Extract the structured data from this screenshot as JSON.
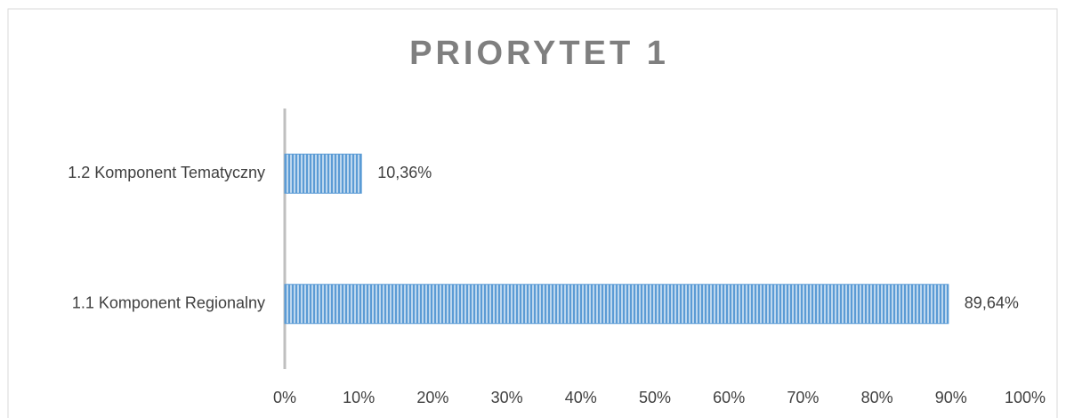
{
  "chart_data": {
    "type": "bar",
    "orientation": "horizontal",
    "title": "PRIORYTET 1",
    "categories": [
      "1.2 Komponent Tematyczny",
      "1.1 Komponent Regionalny"
    ],
    "values": [
      10.36,
      89.64
    ],
    "value_labels": [
      "10,36%",
      "89,64%"
    ],
    "color": "#5b9bd5",
    "xlim": [
      0,
      100
    ],
    "xticks": [
      {
        "value": 0,
        "label": "0%"
      },
      {
        "value": 10,
        "label": "10%"
      },
      {
        "value": 20,
        "label": "20%"
      },
      {
        "value": 30,
        "label": "30%"
      },
      {
        "value": 40,
        "label": "40%"
      },
      {
        "value": 50,
        "label": "50%"
      },
      {
        "value": 60,
        "label": "60%"
      },
      {
        "value": 70,
        "label": "70%"
      },
      {
        "value": 80,
        "label": "80%"
      },
      {
        "value": 90,
        "label": "90%"
      },
      {
        "value": 100,
        "label": "100%"
      }
    ],
    "grid": false
  }
}
